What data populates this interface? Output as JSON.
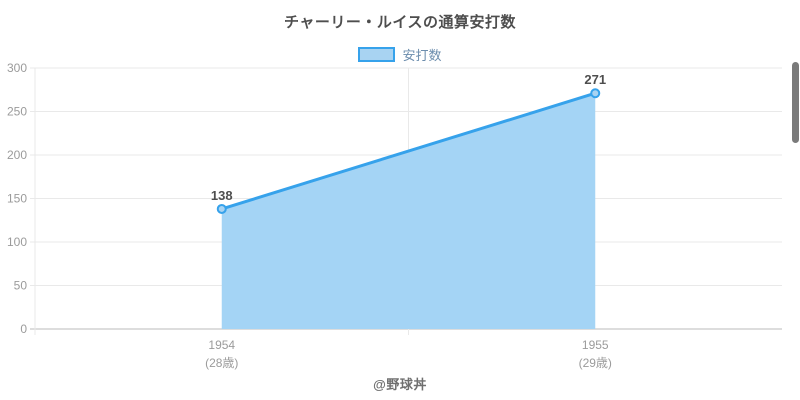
{
  "chart_data": {
    "type": "area",
    "title": "チャーリー・ルイスの通算安打数",
    "categories": [
      "1954",
      "1955"
    ],
    "category_sublabels": [
      "(28歳)",
      "(29歳)"
    ],
    "series": [
      {
        "name": "安打数",
        "values": [
          138,
          271
        ]
      }
    ],
    "ylim": [
      0,
      300
    ],
    "ytick_step": 50,
    "yticks": [
      0,
      50,
      100,
      150,
      200,
      250,
      300
    ],
    "grid": true,
    "legend_position": "top",
    "annotation": "@野球丼",
    "colors": {
      "line": "#36A2EB",
      "area_fill": "#A4D4F5",
      "point_fill": "#A8D3F2",
      "grid": "#E9E9E9",
      "axis": "#D2D2D2",
      "tick_label": "#9B9B9B",
      "title": "#4E4E4E",
      "data_label": "#4E4E4E",
      "legend_text": "#6C8DAD",
      "footer_text": "#6F6F6F"
    }
  },
  "ui": {
    "scrollbar_color": "#7A7A7A"
  }
}
